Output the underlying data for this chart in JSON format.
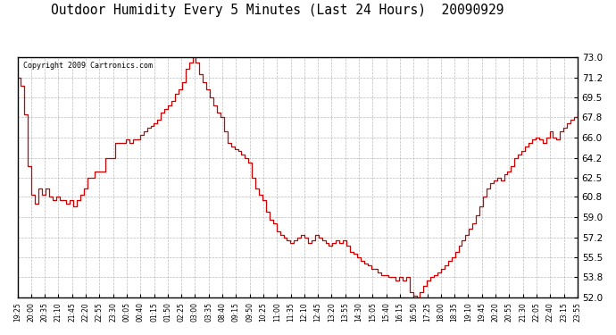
{
  "title": "Outdoor Humidity Every 5 Minutes (Last 24 Hours)  20090929",
  "copyright_text": "Copyright 2009 Cartronics.com",
  "line_color": "#cc0000",
  "bg_color": "#ffffff",
  "grid_color": "#aaaaaa",
  "ylim": [
    52.0,
    73.0
  ],
  "yticks": [
    52.0,
    53.8,
    55.5,
    57.2,
    59.0,
    60.8,
    62.5,
    64.2,
    66.0,
    67.8,
    69.5,
    71.2,
    73.0
  ],
  "xtick_labels": [
    "19:25",
    "20:00",
    "20:35",
    "21:10",
    "21:45",
    "22:20",
    "22:55",
    "23:30",
    "00:05",
    "00:40",
    "01:15",
    "01:50",
    "02:25",
    "03:00",
    "03:35",
    "08:40",
    "09:15",
    "09:50",
    "10:25",
    "11:00",
    "11:35",
    "12:10",
    "12:45",
    "13:20",
    "13:55",
    "14:30",
    "15:05",
    "15:40",
    "16:15",
    "16:50",
    "17:25",
    "18:00",
    "18:35",
    "19:10",
    "19:45",
    "20:20",
    "20:55",
    "21:30",
    "22:05",
    "22:40",
    "23:15",
    "23:55"
  ],
  "humidity_values": [
    71.2,
    70.5,
    68.0,
    63.5,
    61.0,
    60.2,
    61.5,
    61.0,
    61.5,
    60.8,
    60.5,
    60.8,
    60.5,
    60.5,
    60.2,
    60.5,
    60.0,
    60.5,
    61.0,
    61.5,
    62.5,
    62.5,
    63.0,
    63.0,
    63.0,
    64.2,
    64.2,
    64.2,
    65.5,
    65.5,
    65.5,
    65.8,
    65.5,
    65.8,
    65.8,
    66.2,
    66.5,
    66.8,
    67.0,
    67.2,
    67.5,
    68.2,
    68.5,
    68.8,
    69.2,
    69.8,
    70.2,
    70.8,
    72.0,
    72.5,
    73.0,
    72.5,
    71.5,
    70.8,
    70.2,
    69.5,
    68.8,
    68.2,
    67.8,
    66.5,
    65.5,
    65.2,
    65.0,
    64.8,
    64.5,
    64.2,
    63.8,
    62.5,
    61.5,
    61.0,
    60.5,
    59.5,
    58.8,
    58.5,
    57.8,
    57.5,
    57.2,
    57.0,
    56.8,
    57.0,
    57.2,
    57.5,
    57.2,
    56.8,
    57.0,
    57.5,
    57.2,
    57.0,
    56.8,
    56.5,
    56.8,
    57.0,
    56.8,
    57.0,
    56.5,
    56.0,
    55.8,
    55.5,
    55.2,
    55.0,
    54.8,
    54.5,
    54.5,
    54.2,
    54.0,
    54.0,
    53.8,
    53.8,
    53.5,
    53.8,
    53.5,
    53.8,
    52.5,
    52.2,
    52.0,
    52.5,
    53.0,
    53.5,
    53.8,
    54.0,
    54.2,
    54.5,
    54.8,
    55.2,
    55.5,
    56.0,
    56.5,
    57.0,
    57.5,
    58.0,
    58.5,
    59.2,
    60.0,
    60.8,
    61.5,
    62.0,
    62.2,
    62.5,
    62.2,
    62.8,
    63.0,
    63.5,
    64.2,
    64.5,
    64.8,
    65.2,
    65.5,
    65.8,
    66.0,
    65.8,
    65.5,
    66.0,
    66.5,
    66.0,
    65.8,
    66.5,
    66.8,
    67.2,
    67.5,
    67.8,
    68.2
  ]
}
